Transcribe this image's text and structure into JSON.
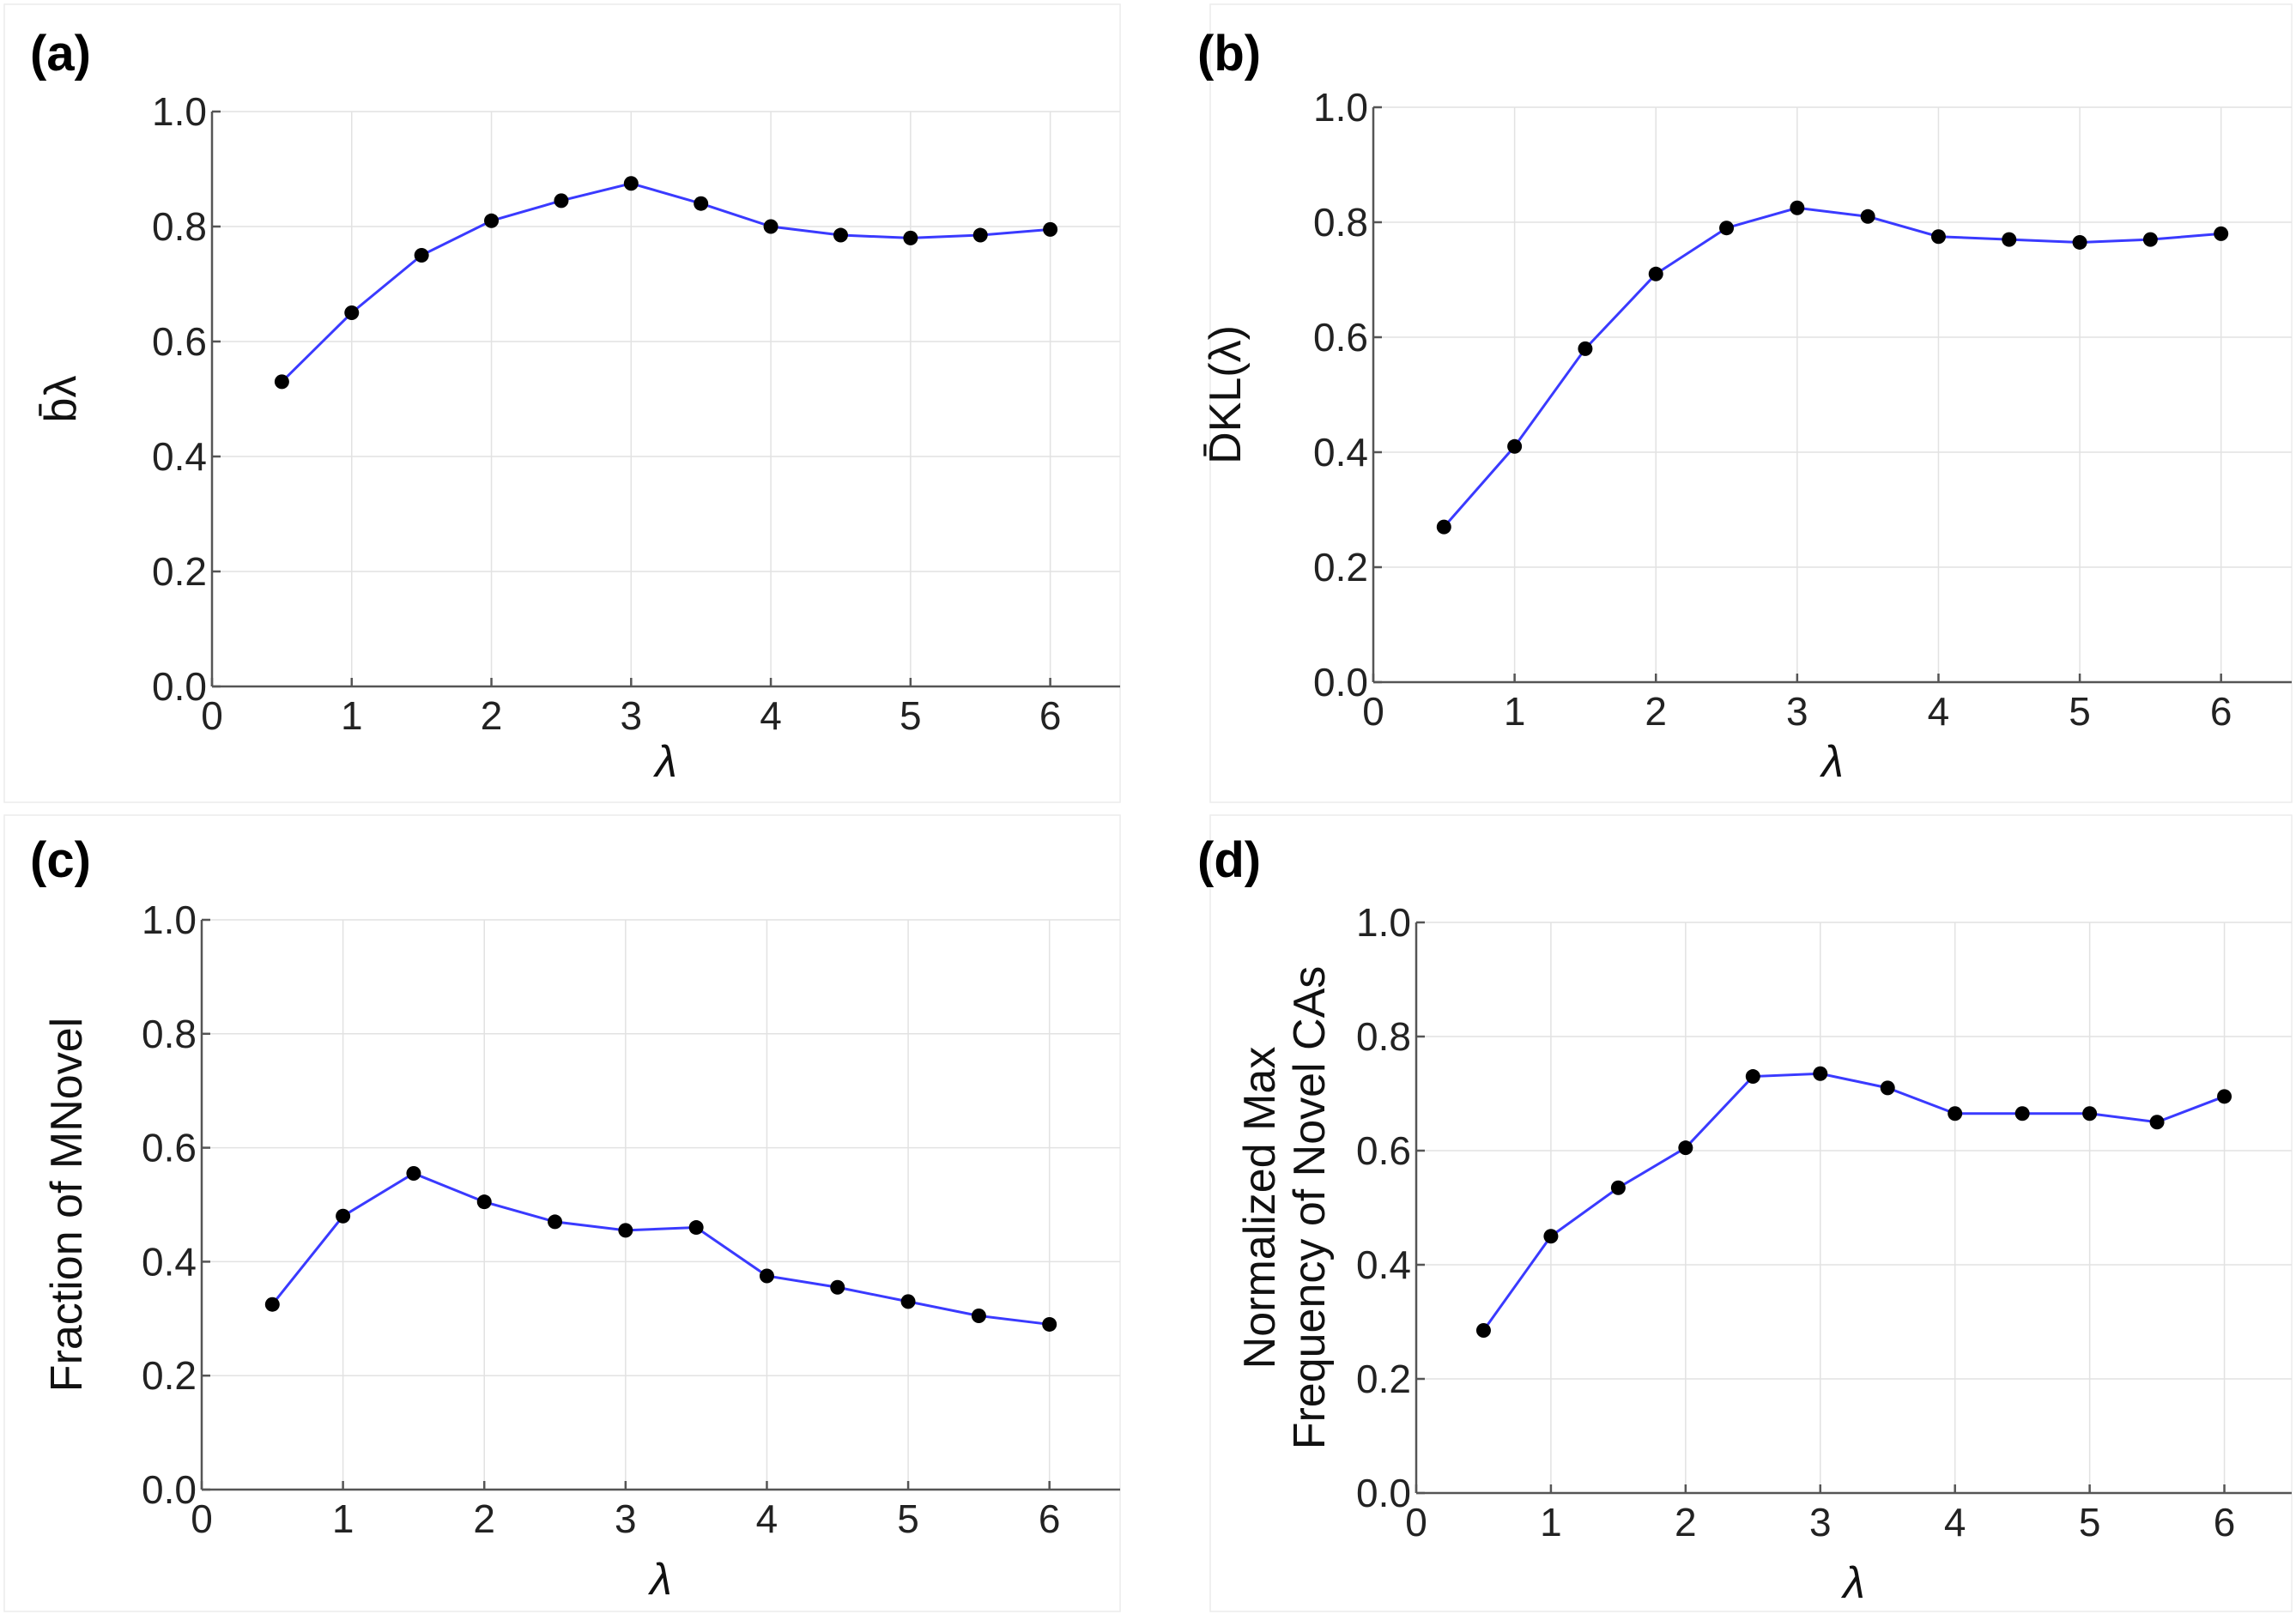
{
  "colors": {
    "line": "#3a3aff",
    "marker": "#000000"
  },
  "chart_data": [
    {
      "type": "line",
      "panel_label": "(a)",
      "title": "",
      "xlabel": "λ",
      "ylabel": "b̄λ",
      "xlim": [
        0,
        6.5
      ],
      "ylim": [
        0,
        1.0
      ],
      "xticks": [
        0,
        1,
        2,
        3,
        4,
        5,
        6
      ],
      "yticks": [
        "0.0",
        "0.2",
        "0.4",
        "0.6",
        "0.8",
        "1.0"
      ],
      "grid": true,
      "x": [
        0.5,
        1.0,
        1.5,
        2.0,
        2.5,
        3.0,
        3.5,
        4.0,
        4.5,
        5.0,
        5.5,
        6.0
      ],
      "y": [
        0.53,
        0.65,
        0.75,
        0.81,
        0.845,
        0.875,
        0.84,
        0.8,
        0.785,
        0.78,
        0.785,
        0.795
      ]
    },
    {
      "type": "line",
      "panel_label": "(b)",
      "title": "",
      "xlabel": "λ",
      "ylabel": "D̄KL(λ)",
      "xlim": [
        0,
        6.5
      ],
      "ylim": [
        0,
        1.0
      ],
      "xticks": [
        0,
        1,
        2,
        3,
        4,
        5,
        6
      ],
      "yticks": [
        "0.0",
        "0.2",
        "0.4",
        "0.6",
        "0.8",
        "1.0"
      ],
      "grid": true,
      "x": [
        0.5,
        1.0,
        1.5,
        2.0,
        2.5,
        3.0,
        3.5,
        4.0,
        4.5,
        5.0,
        5.5,
        6.0
      ],
      "y": [
        0.27,
        0.41,
        0.58,
        0.71,
        0.79,
        0.825,
        0.81,
        0.775,
        0.77,
        0.765,
        0.77,
        0.78
      ]
    },
    {
      "type": "line",
      "panel_label": "(c)",
      "title": "",
      "xlabel": "λ",
      "ylabel": "Fraction of MNovel",
      "xlim": [
        0,
        6.5
      ],
      "ylim": [
        0,
        1.0
      ],
      "xticks": [
        0,
        1,
        2,
        3,
        4,
        5,
        6
      ],
      "yticks": [
        "0.0",
        "0.2",
        "0.4",
        "0.6",
        "0.8",
        "1.0"
      ],
      "grid": true,
      "x": [
        0.5,
        1.0,
        1.5,
        2.0,
        2.5,
        3.0,
        3.5,
        4.0,
        4.5,
        5.0,
        5.5,
        6.0
      ],
      "y": [
        0.325,
        0.48,
        0.555,
        0.505,
        0.47,
        0.455,
        0.46,
        0.375,
        0.355,
        0.33,
        0.305,
        0.29
      ]
    },
    {
      "type": "line",
      "panel_label": "(d)",
      "title": "",
      "xlabel": "λ",
      "ylabel_lines": [
        "Normalized Max",
        "Frequency of Novel CAs"
      ],
      "xlim": [
        0,
        6.5
      ],
      "ylim": [
        0,
        1.0
      ],
      "xticks": [
        0,
        1,
        2,
        3,
        4,
        5,
        6
      ],
      "yticks": [
        "0.0",
        "0.2",
        "0.4",
        "0.6",
        "0.8",
        "1.0"
      ],
      "grid": true,
      "x": [
        0.5,
        1.0,
        1.5,
        2.0,
        2.5,
        3.0,
        3.5,
        4.0,
        4.5,
        5.0,
        5.5,
        6.0
      ],
      "y": [
        0.285,
        0.45,
        0.535,
        0.605,
        0.73,
        0.735,
        0.71,
        0.665,
        0.665,
        0.665,
        0.65,
        0.695
      ]
    }
  ]
}
